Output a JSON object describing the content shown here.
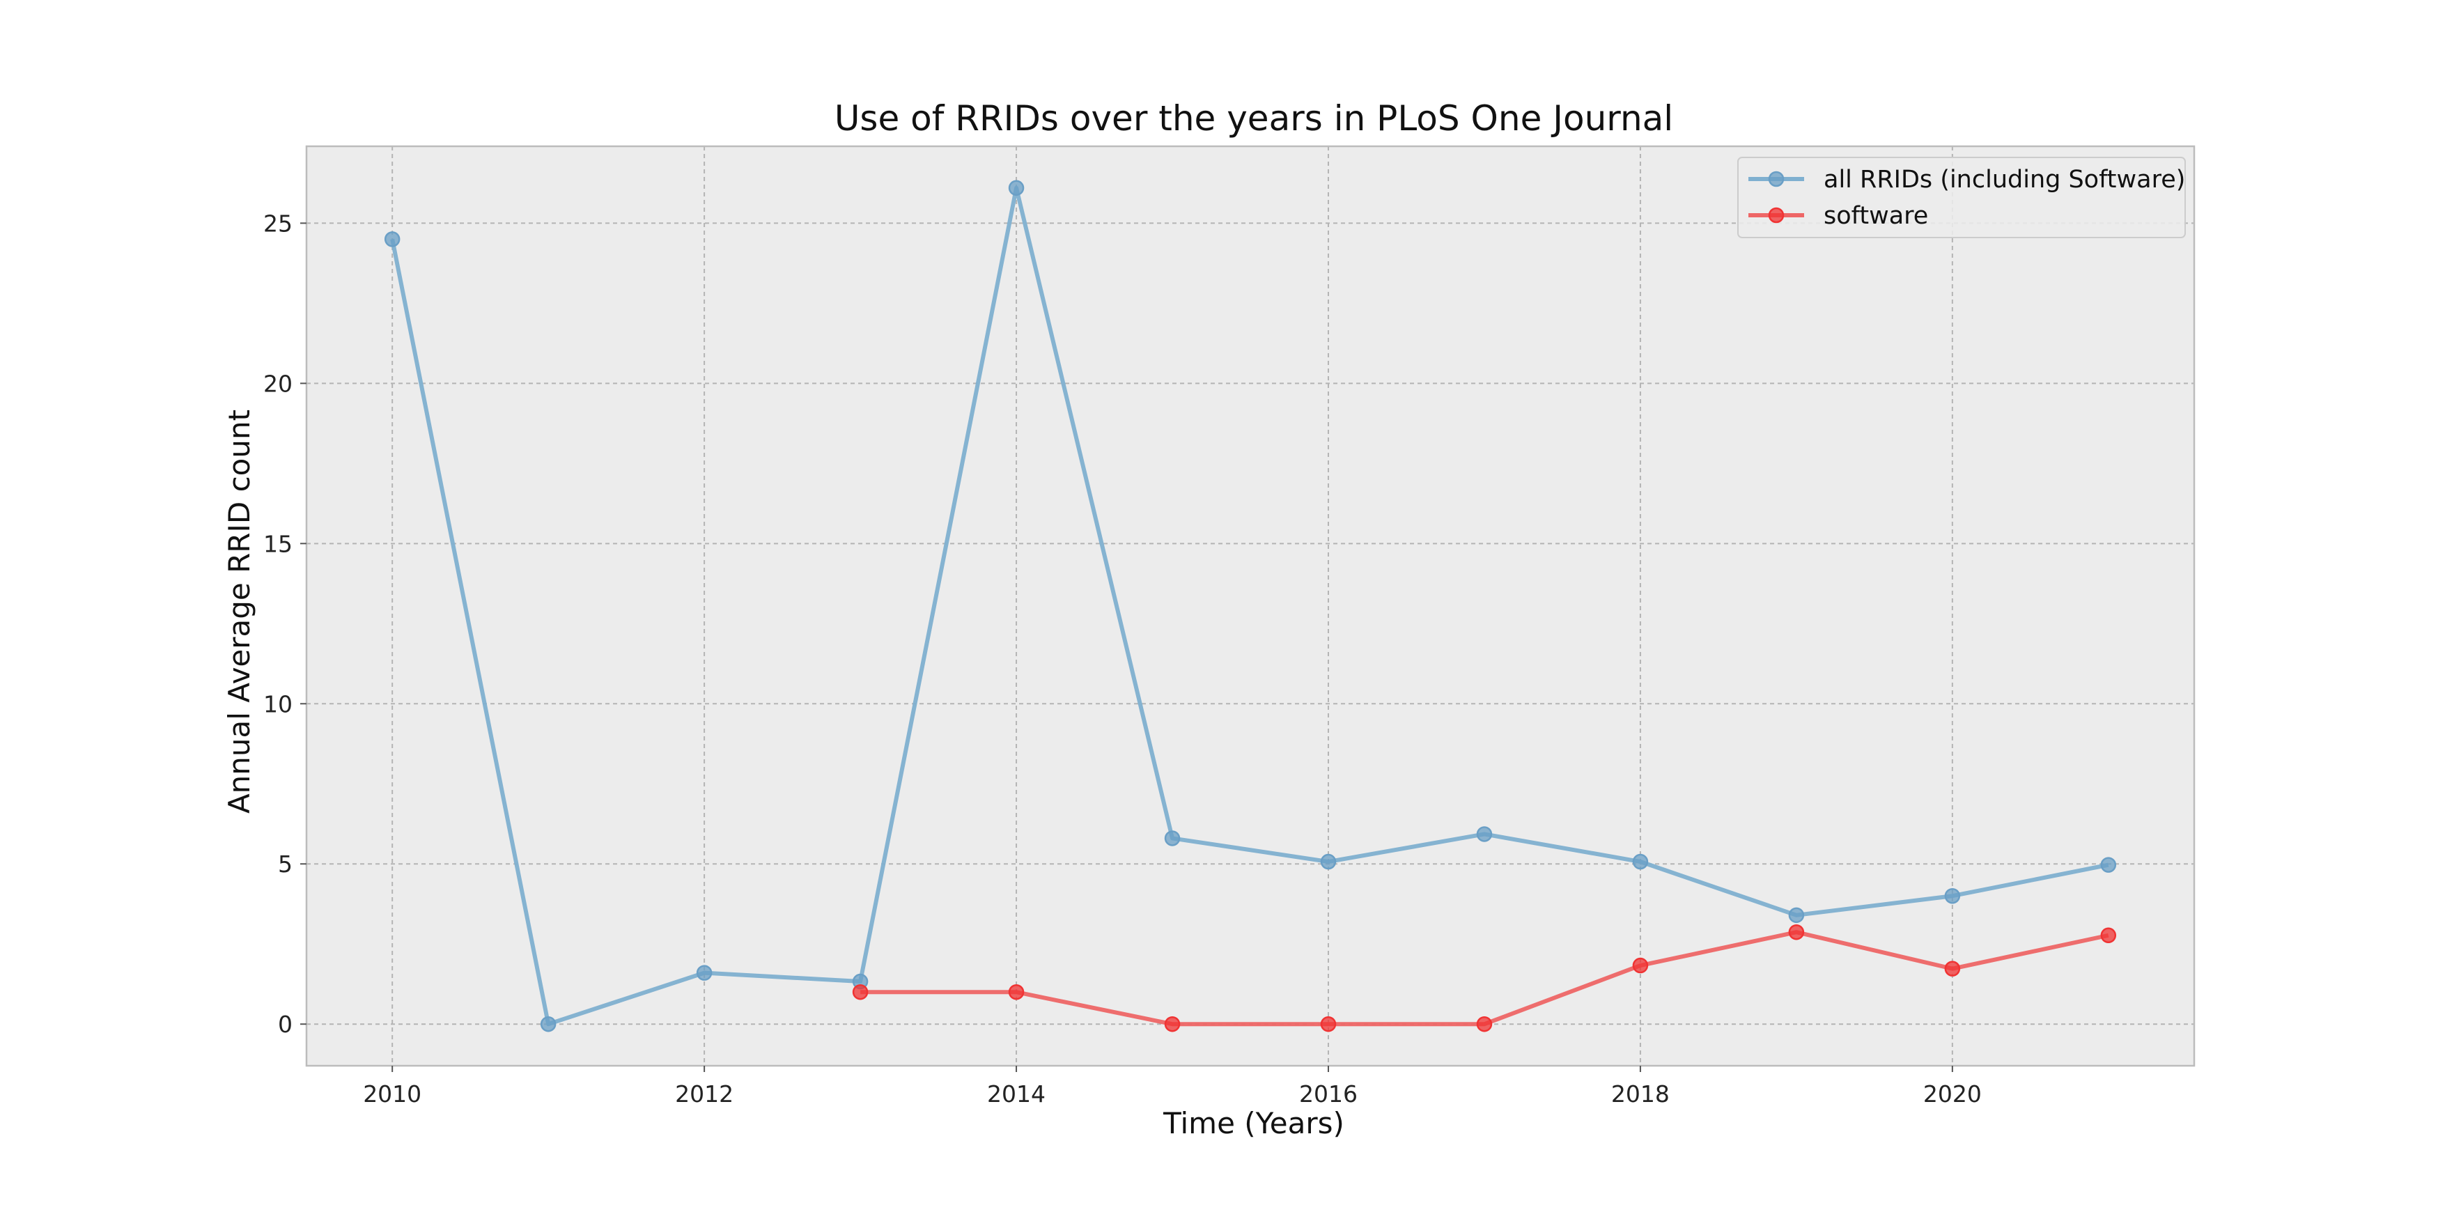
{
  "chart_data": {
    "type": "line",
    "title": "Use of RRIDs over the years in PLoS One Journal",
    "xlabel": "Time (Years)",
    "ylabel": "Annual Average RRID count",
    "xlim": [
      2009.45,
      2021.55
    ],
    "ylim": [
      -1.3,
      27.4
    ],
    "x_ticks": [
      2010,
      2012,
      2014,
      2016,
      2018,
      2020
    ],
    "y_ticks": [
      0,
      5,
      10,
      15,
      20,
      25
    ],
    "grid": true,
    "legend_position": "upper right",
    "series": [
      {
        "name": "all RRIDs (including Software)",
        "color": "#7fb0d0",
        "marker_color": "#6a9fc6",
        "x": [
          2010,
          2011,
          2012,
          2013,
          2014,
          2015,
          2016,
          2017,
          2018,
          2019,
          2020,
          2021
        ],
        "values": [
          24.5,
          0.0,
          1.6,
          1.33,
          26.1,
          5.8,
          5.07,
          5.93,
          5.07,
          3.4,
          4.0,
          4.97
        ]
      },
      {
        "name": "software",
        "color": "#ee6666",
        "marker_color": "#f03333",
        "x": [
          2013,
          2014,
          2015,
          2016,
          2017,
          2018,
          2019,
          2020,
          2021
        ],
        "values": [
          1.0,
          1.0,
          0.0,
          0.0,
          0.0,
          1.83,
          2.87,
          1.73,
          2.77
        ]
      }
    ]
  }
}
